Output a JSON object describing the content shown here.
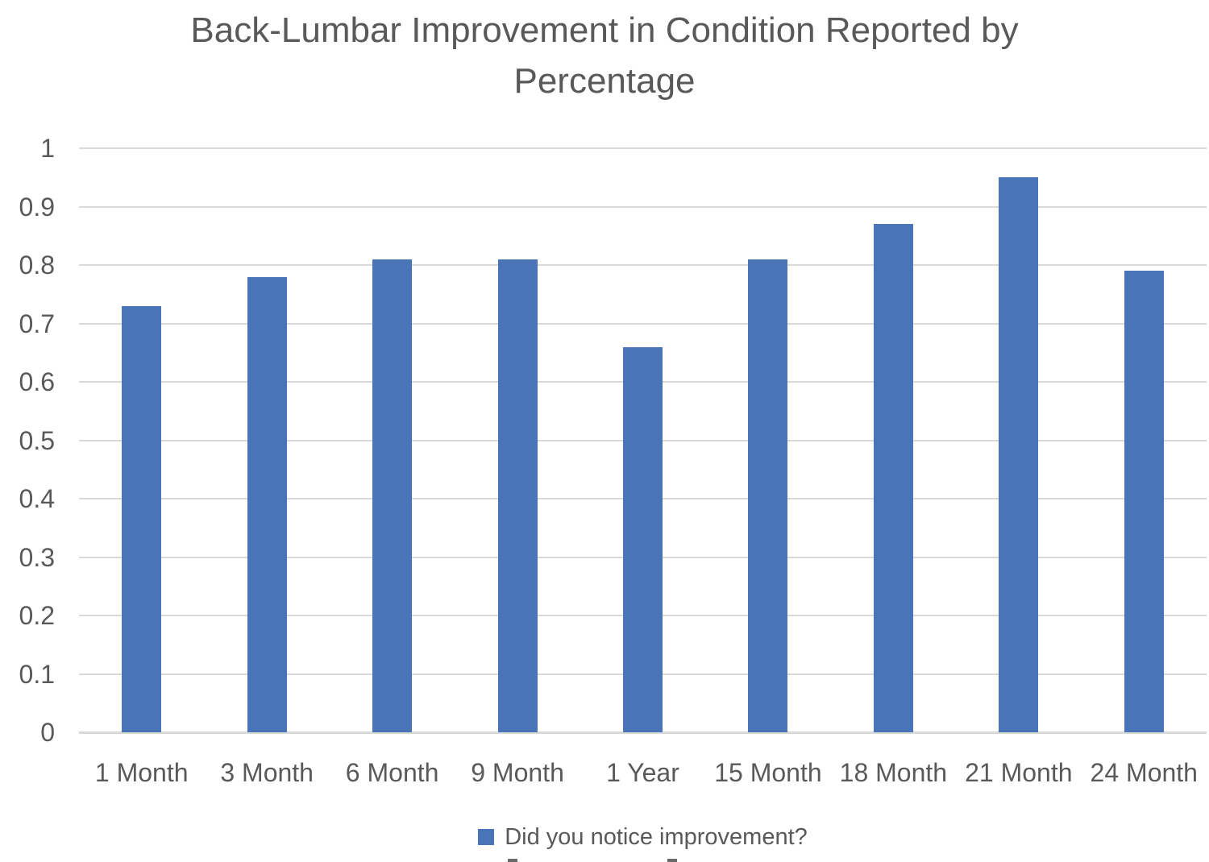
{
  "title": {
    "line1": "Back-Lumbar Improvement in Condition Reported by",
    "line2": "Percentage"
  },
  "legend": {
    "label": "Did you notice improvement?"
  },
  "chart_data": {
    "type": "bar",
    "title": "Back-Lumbar Improvement in Condition Reported by Percentage",
    "categories": [
      "1 Month",
      "3 Month",
      "6 Month",
      "9 Month",
      "1 Year",
      "15 Month",
      "18 Month",
      "21 Month",
      "24 Month"
    ],
    "series": [
      {
        "name": "Did you notice improvement?",
        "values": [
          0.73,
          0.78,
          0.81,
          0.81,
          0.66,
          0.81,
          0.87,
          0.95,
          0.79
        ]
      }
    ],
    "xlabel": "",
    "ylabel": "",
    "ylim": [
      0,
      1
    ],
    "ytick_step": 0.1,
    "ytick_labels": [
      "0",
      "0.1",
      "0.2",
      "0.3",
      "0.4",
      "0.5",
      "0.6",
      "0.7",
      "0.8",
      "0.9",
      "1"
    ],
    "grid": true,
    "legend_position": "bottom",
    "colors": {
      "bar": "#4a74b8",
      "gridline": "#d9d9d9",
      "text": "#595959"
    }
  }
}
